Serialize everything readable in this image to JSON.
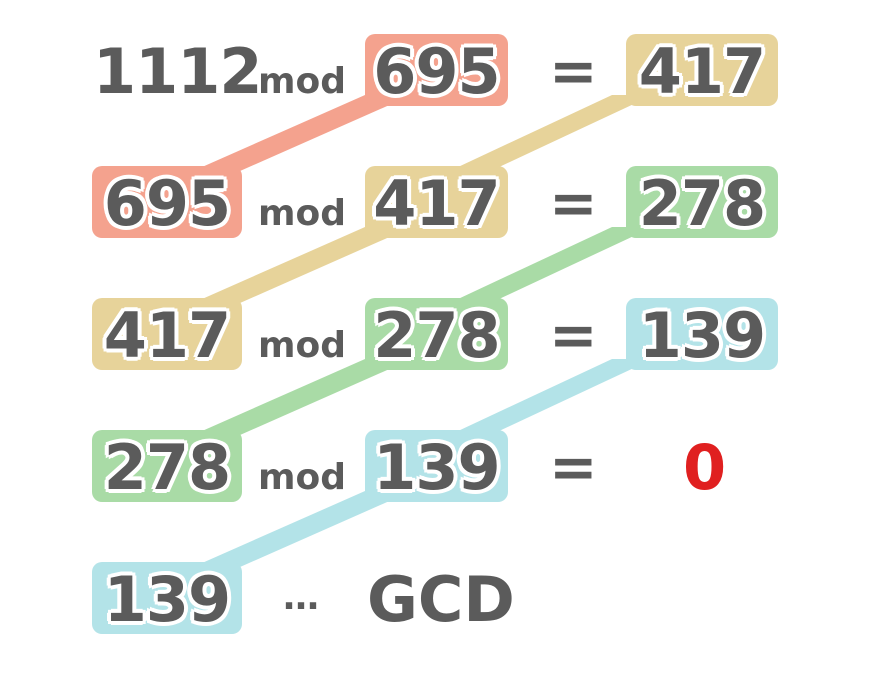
{
  "colors": {
    "text": "#5b5b5b",
    "salmon": "#f4a28e",
    "yellow": "#e7d39a",
    "green": "#a9dba6",
    "cyan": "#b3e3e8",
    "red": "#e02020"
  },
  "labels": {
    "mod": "mod",
    "equals": "=",
    "ellipsis": "…",
    "gcd": "GCD"
  },
  "rows": [
    {
      "dividend": "1112",
      "divisor": "695",
      "remainder": "417"
    },
    {
      "dividend": "695",
      "divisor": "417",
      "remainder": "278"
    },
    {
      "dividend": "417",
      "divisor": "278",
      "remainder": "139"
    },
    {
      "dividend": "278",
      "divisor": "139",
      "remainder": "0"
    }
  ],
  "final": {
    "value": "139"
  }
}
